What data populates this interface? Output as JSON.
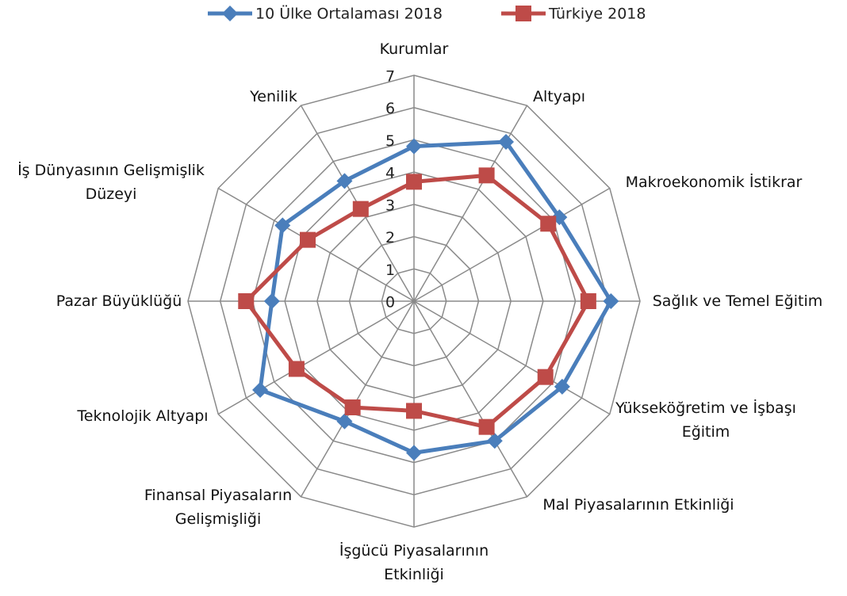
{
  "chart_data": {
    "type": "radar",
    "categories": [
      "Kurumlar",
      "Altyapı",
      "Makroekonomik İstikrar",
      "Sağlık ve Temel Eğitim",
      "Yükseköğretim ve İşbaşı Eğitim",
      "Mal Piyasalarının Etkinliği",
      "İşgücü Piyasalarının Etkinliği",
      "Finansal Piyasaların Gelişmişliği",
      "Teknolojik Altyapı",
      "Pazar Büyüklüğü",
      "İş Dünyasının Gelişmişlik Düzeyi",
      "Yenilik"
    ],
    "series": [
      {
        "name": "10 Ülke Ortalaması 2018",
        "color": "#4a7ebb",
        "marker": "diamond",
        "values": [
          4.8,
          5.7,
          5.2,
          6.1,
          5.3,
          5.0,
          4.7,
          4.3,
          5.5,
          4.4,
          4.7,
          4.3
        ]
      },
      {
        "name": "Türkiye 2018",
        "color": "#be4b48",
        "marker": "square",
        "values": [
          3.7,
          4.5,
          4.8,
          5.4,
          4.7,
          4.5,
          3.4,
          3.8,
          4.2,
          5.2,
          3.8,
          3.3
        ]
      }
    ],
    "ylim": [
      0,
      7
    ],
    "yticks": [
      0,
      1,
      2,
      3,
      4,
      5,
      6,
      7
    ],
    "grid": true,
    "legend": "top"
  }
}
